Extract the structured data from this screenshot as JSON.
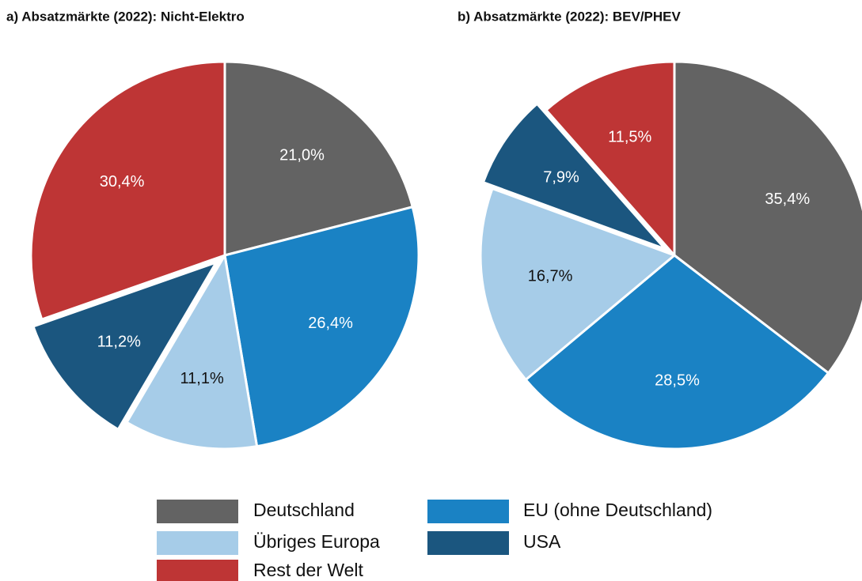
{
  "chart_data": [
    {
      "type": "pie",
      "title": "a) Absatzmärkte (2022): Nicht-Elektro",
      "categories": [
        "Deutschland",
        "EU (ohne Deutschland)",
        "Übriges Europa",
        "USA",
        "Rest der Welt"
      ],
      "values": [
        21.0,
        26.4,
        11.1,
        11.2,
        30.4
      ],
      "value_labels": [
        "21,0%",
        "26,4%",
        "11,1%",
        "11,2%",
        "30,4%"
      ],
      "colors": [
        "#636363",
        "#1a82c4",
        "#a6cce8",
        "#1b567f",
        "#be3535"
      ],
      "explode": [
        false,
        false,
        false,
        true,
        false
      ]
    },
    {
      "type": "pie",
      "title": "b) Absatzmärkte (2022): BEV/PHEV",
      "categories": [
        "Deutschland",
        "EU (ohne Deutschland)",
        "Übriges Europa",
        "USA",
        "Rest der Welt"
      ],
      "values": [
        35.4,
        28.5,
        16.7,
        7.9,
        11.5
      ],
      "value_labels": [
        "35,4%",
        "28,5%",
        "16,7%",
        "7,9%",
        "11,5%"
      ],
      "colors": [
        "#636363",
        "#1a82c4",
        "#a6cce8",
        "#1b567f",
        "#be3535"
      ],
      "explode": [
        false,
        false,
        false,
        true,
        false
      ]
    }
  ]
}
